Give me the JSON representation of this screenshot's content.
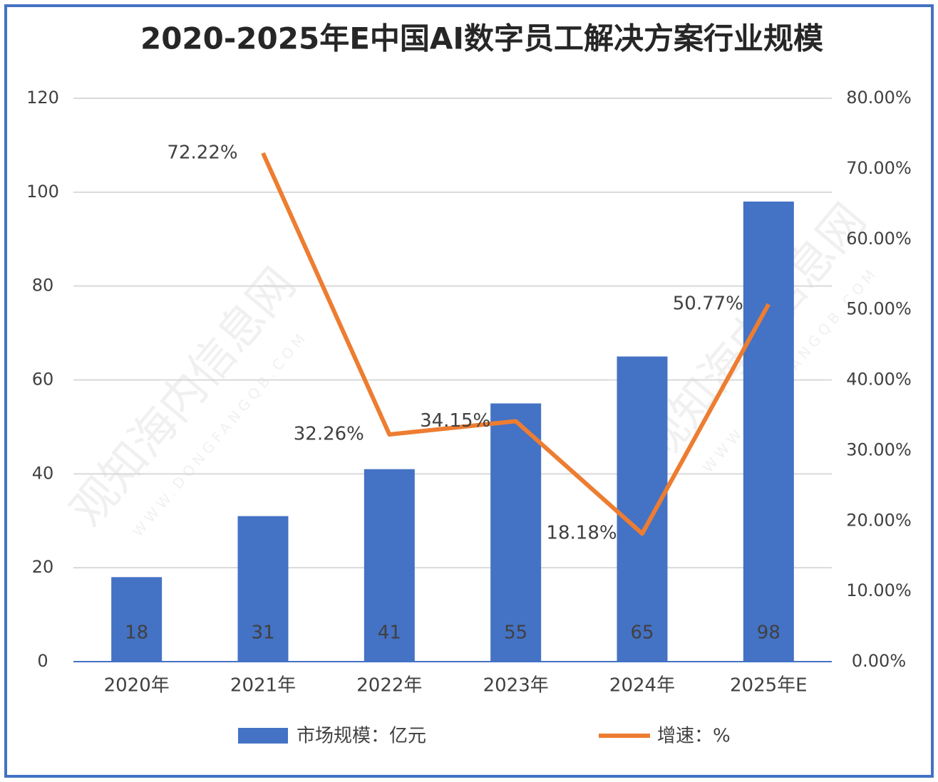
{
  "chart_data": {
    "type": "bar_line",
    "title": "2020-2025年E中国AI数字员工解决方案行业规模",
    "watermark": "观知海内信息网",
    "watermark_url": "WWW.DONGFANGQB.COM",
    "categories": [
      "2020年",
      "2021年",
      "2022年",
      "2023年",
      "2024年",
      "2025年E"
    ],
    "series": [
      {
        "name": "市场规模：亿元",
        "type": "bar",
        "color": "#4472c4",
        "values": [
          18,
          31,
          41,
          55,
          65,
          98
        ]
      },
      {
        "name": "增速：%",
        "type": "line",
        "axis": "y2",
        "color": "#ed7d31",
        "values": [
          null,
          72.22,
          32.26,
          34.15,
          18.18,
          50.77
        ],
        "value_labels": [
          null,
          "72.22%",
          "32.26%",
          "34.15%",
          "18.18%",
          "50.77%"
        ]
      }
    ],
    "ylim": [
      0,
      120
    ],
    "yticks": [
      0,
      20,
      40,
      60,
      80,
      100,
      120
    ],
    "y2lim": [
      0,
      80
    ],
    "y2ticks": [
      {
        "value": 0,
        "label": "0.00%"
      },
      {
        "value": 10,
        "label": "10.00%"
      },
      {
        "value": 20,
        "label": "20.00%"
      },
      {
        "value": 30,
        "label": "30.00%"
      },
      {
        "value": 40,
        "label": "40.00%"
      },
      {
        "value": 50,
        "label": "50.00%"
      },
      {
        "value": 60,
        "label": "60.00%"
      },
      {
        "value": 70,
        "label": "70.00%"
      },
      {
        "value": 80,
        "label": "80.00%"
      }
    ],
    "grid": true,
    "legend": "bottom"
  }
}
